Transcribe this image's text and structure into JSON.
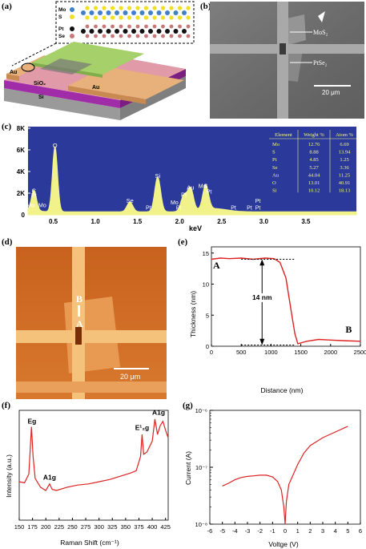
{
  "panel_labels": {
    "a": "(a)",
    "b": "(b)",
    "c": "(c)",
    "d": "(d)",
    "e": "(e)",
    "f": "(f)",
    "g": "(g)"
  },
  "panel_a": {
    "atoms": [
      "Mo",
      "S",
      "Pt",
      "Se"
    ],
    "layers": [
      "Au",
      "SiO₂",
      "Au",
      "Si"
    ],
    "colors": {
      "mo": "#3f80c8",
      "s": "#f0e020",
      "pt": "#111111",
      "se": "#c87878",
      "au": "#e8b07a",
      "sio2": "#a02ca8",
      "si": "#b8b8b8",
      "film": "#a6d06a"
    }
  },
  "panel_b": {
    "label_top": "MoS₂",
    "label_bottom": "PtSe₂",
    "scalebar": "20 μm"
  },
  "panel_c": {
    "chart_data": {
      "type": "line",
      "xlabel": "keV",
      "xticks": [
        "0.5",
        "1.0",
        "1.5",
        "2.0",
        "2.5",
        "3.0",
        "3.5"
      ],
      "yticks": [
        "0",
        "2K",
        "4K",
        "6K",
        "8K"
      ],
      "xlim": [
        0.2,
        4.1
      ],
      "ylim": [
        0,
        8000
      ],
      "background": "#2b3a9a",
      "fill": "#f2f28a",
      "peaks": [
        {
          "x": 0.27,
          "y": 1800,
          "label": "C"
        },
        {
          "x": 0.52,
          "y": 6000,
          "label": "O"
        },
        {
          "x": 1.41,
          "y": 900,
          "label": "Se"
        },
        {
          "x": 1.74,
          "y": 3200,
          "label": "Si"
        },
        {
          "x": 2.05,
          "y": 1450,
          "label": "Pt"
        },
        {
          "x": 2.13,
          "y": 2100,
          "label": "Au"
        },
        {
          "x": 2.31,
          "y": 2250,
          "label": "S"
        }
      ],
      "annotations": [
        {
          "x": 0.27,
          "y": 1500,
          "t": "Pt"
        },
        {
          "x": 0.23,
          "y": 550,
          "t": "Mo"
        },
        {
          "x": 0.37,
          "y": 550,
          "t": "Mo"
        },
        {
          "x": 1.63,
          "y": 350,
          "t": "Pt"
        },
        {
          "x": 1.94,
          "y": 800,
          "t": "Mo"
        },
        {
          "x": 1.99,
          "y": 350,
          "t": "Pt"
        },
        {
          "x": 2.27,
          "y": 2350,
          "t": "Mo"
        },
        {
          "x": 2.35,
          "y": 1800,
          "t": "Pt"
        },
        {
          "x": 2.64,
          "y": 350,
          "t": "Pt"
        },
        {
          "x": 2.83,
          "y": 350,
          "t": "Pt"
        },
        {
          "x": 2.93,
          "y": 350,
          "t": "Pt"
        },
        {
          "x": 2.93,
          "y": 950,
          "t": "Pt"
        }
      ],
      "table": {
        "headers": [
          "Element",
          "Weight %",
          "Atom %"
        ],
        "rows": [
          [
            "Mo",
            "12.76",
            "6.69"
          ],
          [
            "S",
            "8.88",
            "13.94"
          ],
          [
            "Pt",
            "4.85",
            "1.25"
          ],
          [
            "Se",
            "5.27",
            "3.36"
          ],
          [
            "Au",
            "44.04",
            "11.25"
          ],
          [
            "O",
            "13.01",
            "40.91"
          ],
          [
            "Si",
            "10.12",
            "18.13"
          ]
        ]
      }
    }
  },
  "panel_d": {
    "label_a": "A",
    "label_b": "B",
    "scalebar": "20 μm"
  },
  "panel_e": {
    "chart_data": {
      "type": "line",
      "xlabel": "Distance (nm)",
      "ylabel": "Thickness (nm)",
      "xlim": [
        0,
        2500
      ],
      "ylim": [
        0,
        16
      ],
      "xticks": [
        "0",
        "500",
        "1000",
        "1500",
        "2000",
        "2500"
      ],
      "yticks": [
        "0",
        "5",
        "10",
        "15"
      ],
      "series": [
        {
          "x": [
            0,
            150,
            300,
            500,
            700,
            900,
            1050,
            1150,
            1250,
            1300,
            1350,
            1400,
            1450,
            1600,
            1800,
            2000,
            2200,
            2500
          ],
          "y": [
            14,
            14.2,
            14.1,
            14.2,
            14.0,
            14.2,
            14.1,
            13.5,
            11,
            8,
            5,
            2,
            0.4,
            0.8,
            1.1,
            1.0,
            0.9,
            0.8
          ]
        }
      ],
      "annotations": {
        "a": "A",
        "b": "B",
        "step": "14 nm"
      },
      "line_color": "#dd2222"
    }
  },
  "panel_f": {
    "chart_data": {
      "type": "line",
      "xlabel": "Raman Shift (cm⁻¹)",
      "ylabel": "Intensity (a.u.)",
      "xlim": [
        150,
        430
      ],
      "xticks": [
        "150",
        "175",
        "200",
        "225",
        "250",
        "275",
        "300",
        "325",
        "350",
        "375",
        "400",
        "425"
      ],
      "peak_labels": [
        "Eg",
        "A1g",
        "E¹₂g",
        "A1g"
      ],
      "series": [
        {
          "x": [
            150,
            160,
            168,
            173,
            176,
            180,
            190,
            200,
            207,
            212,
            220,
            240,
            260,
            280,
            300,
            320,
            340,
            360,
            370,
            378,
            381,
            384,
            390,
            400,
            405,
            410,
            415,
            420,
            425,
            430
          ],
          "y": [
            0.35,
            0.34,
            0.42,
            0.85,
            0.58,
            0.38,
            0.3,
            0.27,
            0.33,
            0.28,
            0.27,
            0.3,
            0.32,
            0.33,
            0.35,
            0.37,
            0.4,
            0.43,
            0.45,
            0.58,
            0.78,
            0.6,
            0.62,
            0.72,
            0.92,
            0.78,
            0.86,
            0.9,
            0.82,
            0.75
          ]
        }
      ],
      "line_color": "#dd2222"
    }
  },
  "panel_g": {
    "chart_data": {
      "type": "line",
      "xlabel": "Voltge (V)",
      "ylabel": "Current (A)",
      "xlim": [
        -6,
        6
      ],
      "ylim_log": [
        -8,
        -6
      ],
      "xticks": [
        "-6",
        "-5",
        "-4",
        "-3",
        "-2",
        "-1",
        "0",
        "1",
        "2",
        "3",
        "4",
        "5",
        "6"
      ],
      "yticks": [
        "10⁻⁸",
        "10⁻⁷",
        "10⁻⁶"
      ],
      "series": [
        {
          "x": [
            -5,
            -4.5,
            -4,
            -3.5,
            -3,
            -2.5,
            -2,
            -1.5,
            -1,
            -0.6,
            -0.3,
            -0.1,
            0,
            0.1,
            0.3,
            0.6,
            1,
            1.5,
            2,
            3,
            4,
            5
          ],
          "y": [
            -7.33,
            -7.28,
            -7.22,
            -7.18,
            -7.16,
            -7.15,
            -7.14,
            -7.14,
            -7.17,
            -7.25,
            -7.4,
            -7.7,
            -8.0,
            -7.6,
            -7.3,
            -7.15,
            -6.95,
            -6.75,
            -6.62,
            -6.48,
            -6.38,
            -6.28
          ]
        }
      ],
      "line_color": "#dd2222"
    }
  }
}
